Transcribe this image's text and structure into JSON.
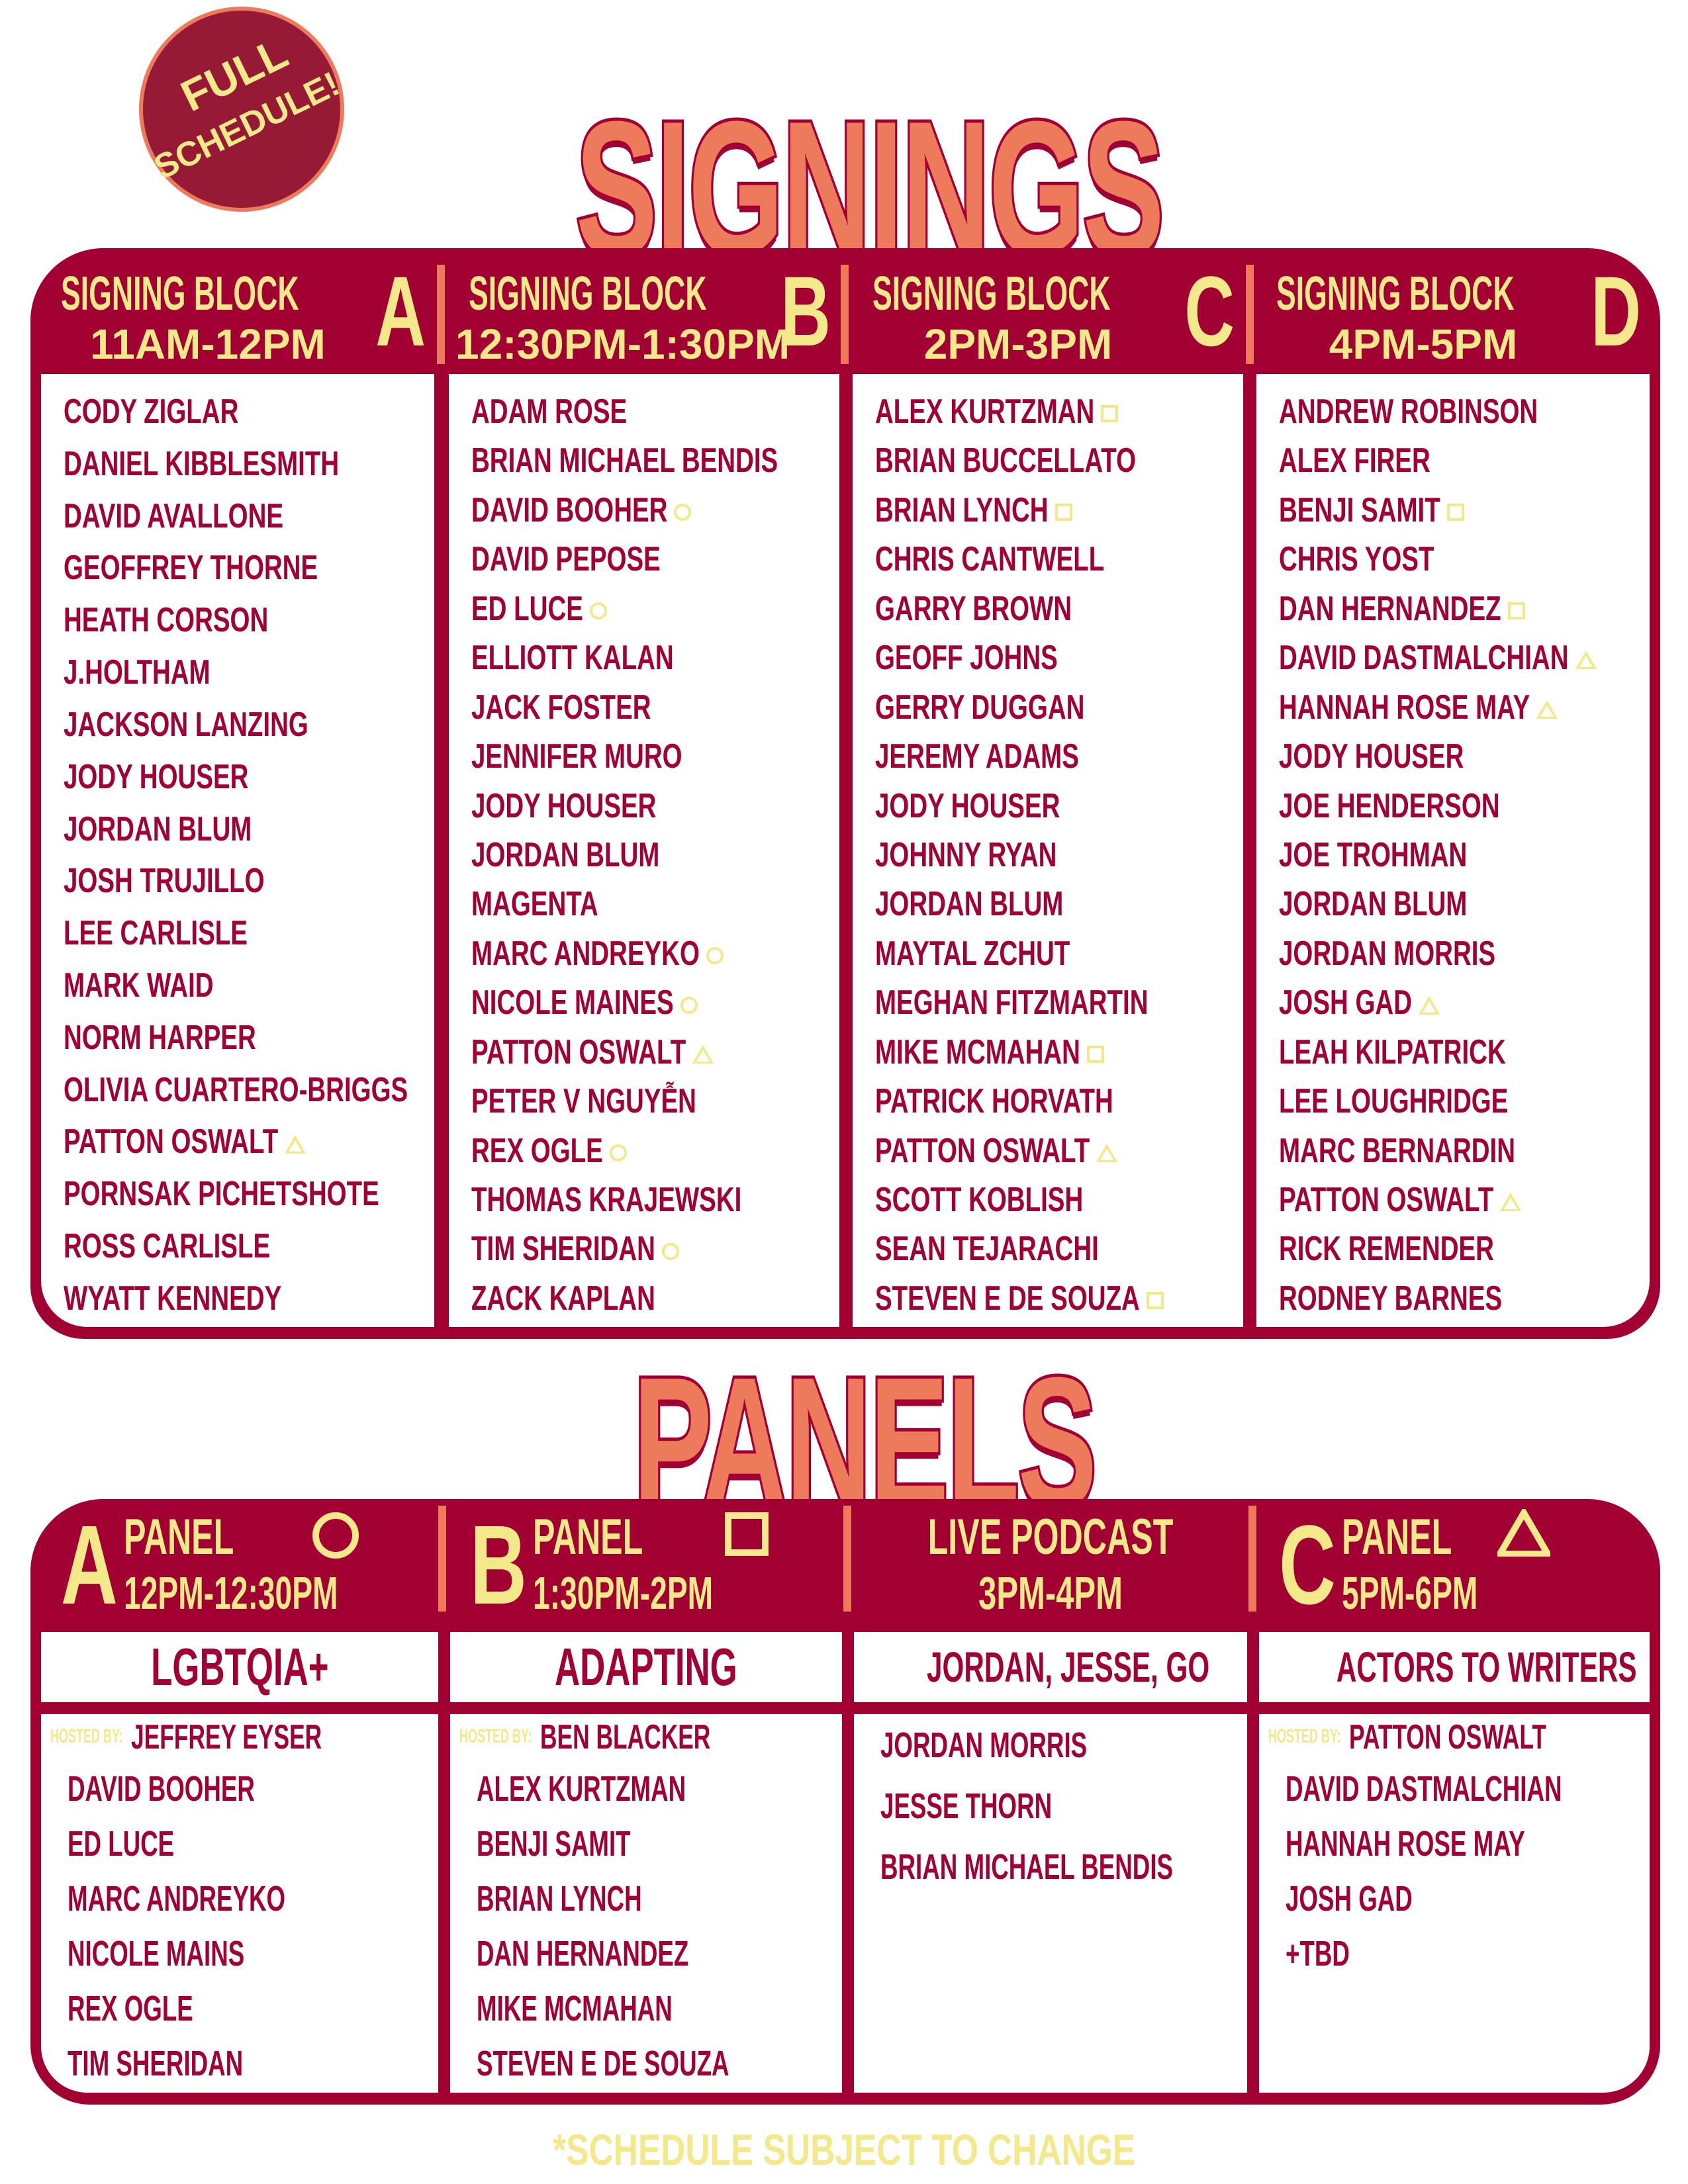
{
  "badge": {
    "line1": "FULL",
    "line2": "SCHEDULE!"
  },
  "colors": {
    "crimson": "#a20033",
    "yellow": "#f3e88a",
    "orange": "#ee7a5c",
    "badge_fill": "#961a36"
  },
  "signings": {
    "title": "SIGNINGS",
    "blocks": [
      {
        "label": "SIGNING BLOCK",
        "letter": "A",
        "time": "11AM-12PM",
        "names": [
          [
            "CODY ZIGLAR",
            ""
          ],
          [
            "DANIEL KIBBLESMITH",
            ""
          ],
          [
            "DAVID AVALLONE",
            ""
          ],
          [
            "GEOFFREY THORNE",
            ""
          ],
          [
            "HEATH CORSON",
            ""
          ],
          [
            "J.HOLTHAM",
            ""
          ],
          [
            "JACKSON LANZING",
            ""
          ],
          [
            "JODY HOUSER",
            ""
          ],
          [
            "JORDAN BLUM",
            ""
          ],
          [
            "JOSH TRUJILLO",
            ""
          ],
          [
            "LEE CARLISLE",
            ""
          ],
          [
            "MARK WAID",
            ""
          ],
          [
            "NORM HARPER",
            ""
          ],
          [
            "OLIVIA CUARTERO-BRIGGS",
            ""
          ],
          [
            "PATTON OSWALT",
            "triangle"
          ],
          [
            "PORNSAK PICHETSHOTE",
            ""
          ],
          [
            "ROSS CARLISLE",
            ""
          ],
          [
            "WYATT KENNEDY",
            ""
          ]
        ]
      },
      {
        "label": "SIGNING BLOCK",
        "letter": "B",
        "time": "12:30PM-1:30PM",
        "names": [
          [
            "ADAM ROSE",
            ""
          ],
          [
            "BRIAN MICHAEL BENDIS",
            ""
          ],
          [
            "DAVID BOOHER",
            "circle"
          ],
          [
            "DAVID PEPOSE",
            ""
          ],
          [
            "ED LUCE",
            "circle"
          ],
          [
            "ELLIOTT KALAN",
            ""
          ],
          [
            "JACK FOSTER",
            ""
          ],
          [
            "JENNIFER MURO",
            ""
          ],
          [
            "JODY HOUSER",
            ""
          ],
          [
            "JORDAN BLUM",
            ""
          ],
          [
            "MAGENTA",
            ""
          ],
          [
            "MARC ANDREYKO",
            "circle"
          ],
          [
            "NICOLE MAINES",
            "circle"
          ],
          [
            "PATTON OSWALT",
            "triangle"
          ],
          [
            "PETER V NGUYỄN",
            ""
          ],
          [
            "REX OGLE",
            "circle"
          ],
          [
            "THOMAS KRAJEWSKI",
            ""
          ],
          [
            "TIM SHERIDAN",
            "circle"
          ],
          [
            "ZACK KAPLAN",
            ""
          ]
        ]
      },
      {
        "label": "SIGNING BLOCK",
        "letter": "C",
        "time": "2PM-3PM",
        "names": [
          [
            "ALEX KURTZMAN",
            "square"
          ],
          [
            "BRIAN BUCCELLATO",
            ""
          ],
          [
            "BRIAN LYNCH",
            "square"
          ],
          [
            "CHRIS CANTWELL",
            ""
          ],
          [
            "GARRY BROWN",
            ""
          ],
          [
            "GEOFF JOHNS",
            ""
          ],
          [
            "GERRY DUGGAN",
            ""
          ],
          [
            "JEREMY ADAMS",
            ""
          ],
          [
            "JODY HOUSER",
            ""
          ],
          [
            "JOHNNY RYAN",
            ""
          ],
          [
            "JORDAN BLUM",
            ""
          ],
          [
            "MAYTAL ZCHUT",
            ""
          ],
          [
            "MEGHAN FITZMARTIN",
            ""
          ],
          [
            "MIKE MCMAHAN",
            "square"
          ],
          [
            "PATRICK HORVATH",
            ""
          ],
          [
            "PATTON OSWALT",
            "triangle"
          ],
          [
            "SCOTT KOBLISH",
            ""
          ],
          [
            "SEAN TEJARACHI",
            ""
          ],
          [
            "STEVEN E DE SOUZA",
            "square"
          ]
        ]
      },
      {
        "label": "SIGNING BLOCK",
        "letter": "D",
        "time": "4PM-5PM",
        "names": [
          [
            "ANDREW ROBINSON",
            ""
          ],
          [
            "ALEX FIRER",
            ""
          ],
          [
            "BENJI SAMIT",
            "square"
          ],
          [
            "CHRIS YOST",
            ""
          ],
          [
            "DAN HERNANDEZ",
            "square"
          ],
          [
            "DAVID DASTMALCHIAN",
            "triangle"
          ],
          [
            "HANNAH ROSE MAY",
            "triangle"
          ],
          [
            "JODY HOUSER",
            ""
          ],
          [
            "JOE HENDERSON",
            ""
          ],
          [
            "JOE TROHMAN",
            ""
          ],
          [
            "JORDAN BLUM",
            ""
          ],
          [
            "JORDAN MORRIS",
            ""
          ],
          [
            "JOSH GAD",
            "triangle"
          ],
          [
            "LEAH KILPATRICK",
            ""
          ],
          [
            "LEE LOUGHRIDGE",
            ""
          ],
          [
            "MARC BERNARDIN",
            ""
          ],
          [
            "PATTON OSWALT",
            "triangle"
          ],
          [
            "RICK REMENDER",
            ""
          ],
          [
            "RODNEY BARNES",
            ""
          ]
        ]
      }
    ]
  },
  "panels": {
    "title": "PANELS",
    "items": [
      {
        "letter": "A",
        "label": "PANEL",
        "symbol": "circle",
        "time": "12PM-12:30PM",
        "topic": "LGBTQIA+",
        "hosted_label": "HOSTED BY:",
        "host": "JEFFREY EYSER",
        "names": [
          "DAVID BOOHER",
          "ED LUCE",
          "MARC ANDREYKO",
          "NICOLE MAINS",
          "REX OGLE",
          "TIM SHERIDAN"
        ]
      },
      {
        "letter": "B",
        "label": "PANEL",
        "symbol": "square",
        "time": "1:30PM-2PM",
        "topic": "ADAPTING",
        "hosted_label": "HOSTED BY:",
        "host": "BEN BLACKER",
        "names": [
          "ALEX KURTZMAN",
          "BENJI SAMIT",
          "BRIAN LYNCH",
          "DAN HERNANDEZ",
          "MIKE MCMAHAN",
          "STEVEN E DE SOUZA"
        ]
      },
      {
        "letter": "",
        "label": "LIVE PODCAST",
        "symbol": "",
        "time": "3PM-4PM",
        "topic": "JORDAN, JESSE, GO",
        "hosted_label": "",
        "host": "",
        "names": [
          "JORDAN MORRIS",
          "JESSE THORN",
          "BRIAN MICHAEL BENDIS"
        ]
      },
      {
        "letter": "C",
        "label": "PANEL",
        "symbol": "triangle",
        "time": "5PM-6PM",
        "topic": "ACTORS TO WRITERS",
        "hosted_label": "HOSTED BY:",
        "host": "PATTON OSWALT",
        "names": [
          "DAVID DASTMALCHIAN",
          "HANNAH ROSE MAY",
          "JOSH GAD",
          "+TBD"
        ]
      }
    ]
  },
  "footer": "*SCHEDULE SUBJECT TO CHANGE"
}
